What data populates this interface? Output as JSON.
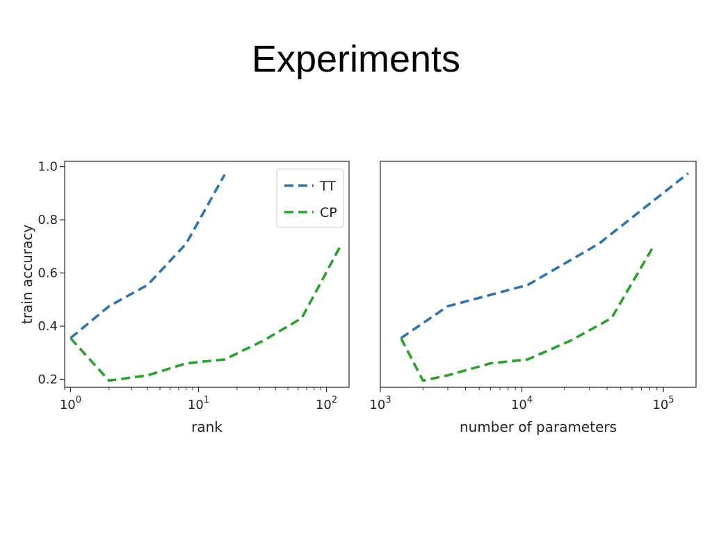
{
  "slide": {
    "title": "Experiments"
  },
  "chart_data": [
    {
      "type": "line",
      "xscale": "log",
      "xlabel": "rank",
      "ylabel": "train accuracy",
      "xlim": [
        0.9,
        150
      ],
      "ylim": [
        0.17,
        1.02
      ],
      "yticks": [
        {
          "value": 0.2,
          "label": "0.2"
        },
        {
          "value": 0.4,
          "label": "0.4"
        },
        {
          "value": 0.6,
          "label": "0.6"
        },
        {
          "value": 0.8,
          "label": "0.8"
        },
        {
          "value": 1.0,
          "label": "1.0"
        }
      ],
      "xticks": [
        {
          "value": 1,
          "base": "10",
          "exp": "0"
        },
        {
          "value": 10,
          "base": "10",
          "exp": "1"
        },
        {
          "value": 100,
          "base": "10",
          "exp": "2"
        }
      ],
      "legend": {
        "placement": "top-right"
      },
      "series": [
        {
          "name": "TT",
          "color": "#2f74ab",
          "dash": "dashed",
          "points": [
            [
              1,
              0.355
            ],
            [
              2,
              0.475
            ],
            [
              4,
              0.555
            ],
            [
              8,
              0.71
            ],
            [
              16,
              0.97
            ]
          ]
        },
        {
          "name": "CP",
          "color": "#2ca02c",
          "dash": "dashed",
          "points": [
            [
              1,
              0.355
            ],
            [
              2,
              0.195
            ],
            [
              4,
              0.215
            ],
            [
              8,
              0.26
            ],
            [
              16,
              0.275
            ],
            [
              32,
              0.345
            ],
            [
              64,
              0.43
            ],
            [
              128,
              0.7
            ]
          ]
        }
      ]
    },
    {
      "type": "line",
      "xscale": "log",
      "xlabel": "number of parameters",
      "ylabel": "",
      "xlim": [
        1000,
        170000
      ],
      "ylim": [
        0.17,
        1.02
      ],
      "yticks": [],
      "xticks": [
        {
          "value": 1000,
          "base": "10",
          "exp": "3"
        },
        {
          "value": 10000,
          "base": "10",
          "exp": "4"
        },
        {
          "value": 100000,
          "base": "10",
          "exp": "5"
        }
      ],
      "series": [
        {
          "name": "TT",
          "color": "#2f74ab",
          "dash": "dashed",
          "points": [
            [
              1400,
              0.355
            ],
            [
              3000,
              0.475
            ],
            [
              11000,
              0.555
            ],
            [
              35000,
              0.71
            ],
            [
              150000,
              0.975
            ]
          ]
        },
        {
          "name": "CP",
          "color": "#2ca02c",
          "dash": "dashed",
          "points": [
            [
              1400,
              0.355
            ],
            [
              2000,
              0.195
            ],
            [
              3000,
              0.215
            ],
            [
              6000,
              0.26
            ],
            [
              11000,
              0.275
            ],
            [
              22000,
              0.345
            ],
            [
              43000,
              0.43
            ],
            [
              85000,
              0.7
            ]
          ]
        }
      ]
    }
  ]
}
